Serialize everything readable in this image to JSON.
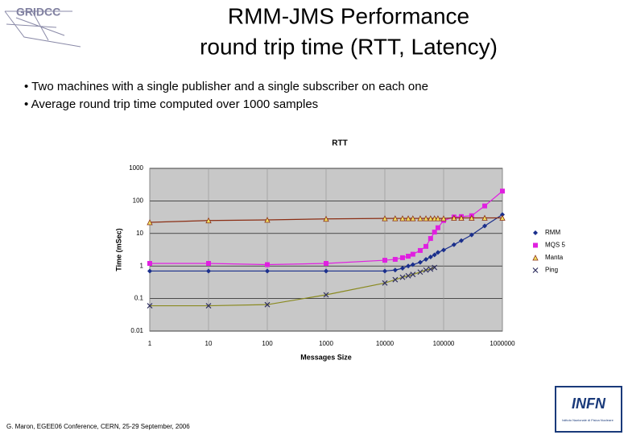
{
  "slide": {
    "title_lines": [
      "RMM-JMS Performance",
      "round trip time (RTT, Latency)"
    ],
    "bullets": [
      "• Two machines with a single publisher and a single subscriber on each one",
      "• Average round trip time computed over 1000 samples"
    ],
    "footer": "G. Maron, EGEE06 Conference, CERN, 25-29 September, 2006",
    "logo_left": "GRIDCC",
    "logo_right": "INFN",
    "logo_right_sub": "Istituto Nazionale di Fisica Nucleare"
  },
  "chart_data": {
    "type": "line",
    "title": "RTT",
    "x_label": "Messages Size",
    "y_label": "Time (mSec)",
    "xlog": true,
    "ylog": true,
    "grid": true,
    "legend": "right",
    "x": [
      1,
      10,
      100,
      1000,
      10000,
      15000,
      20000,
      25000,
      30000,
      40000,
      50000,
      60000,
      70000,
      80000,
      100000,
      150000,
      200000,
      300000,
      500000,
      1000000
    ],
    "xlim": [
      1,
      1000000
    ],
    "xticks": [
      1,
      10,
      100,
      1000,
      10000,
      100000,
      1000000
    ],
    "ylim": [
      0.01,
      1000
    ],
    "yticks": [
      0.01,
      0.1,
      1,
      10,
      100,
      1000
    ],
    "series": [
      {
        "name": "RMM",
        "color": "#1a2f8c",
        "marker": "diamond",
        "values": [
          0.7,
          0.7,
          0.7,
          0.7,
          0.7,
          0.75,
          0.85,
          1.0,
          1.1,
          1.3,
          1.6,
          1.9,
          2.2,
          2.6,
          3.1,
          4.5,
          6,
          9,
          17,
          38
        ]
      },
      {
        "name": "MQS 5",
        "color": "#e020e0",
        "marker": "square",
        "values": [
          1.2,
          1.2,
          1.1,
          1.2,
          1.5,
          1.6,
          1.8,
          2.0,
          2.3,
          3.0,
          4,
          7,
          11,
          15,
          25,
          32,
          33,
          35,
          70,
          200
        ]
      },
      {
        "name": "Manta",
        "color": "#8b2e14",
        "marker": "triangle",
        "values": [
          22,
          25,
          26,
          28,
          29,
          29,
          29,
          29,
          29,
          29,
          29,
          29,
          29,
          29,
          29,
          30,
          30,
          30,
          30,
          30
        ]
      },
      {
        "name": "Ping",
        "color": "#8a8a20",
        "marker": "cross",
        "values": [
          0.06,
          0.06,
          0.065,
          0.13,
          0.3,
          0.38,
          0.45,
          0.5,
          0.55,
          0.65,
          0.75,
          0.8,
          0.9,
          null,
          null,
          null,
          null,
          null,
          null,
          null
        ]
      }
    ]
  }
}
